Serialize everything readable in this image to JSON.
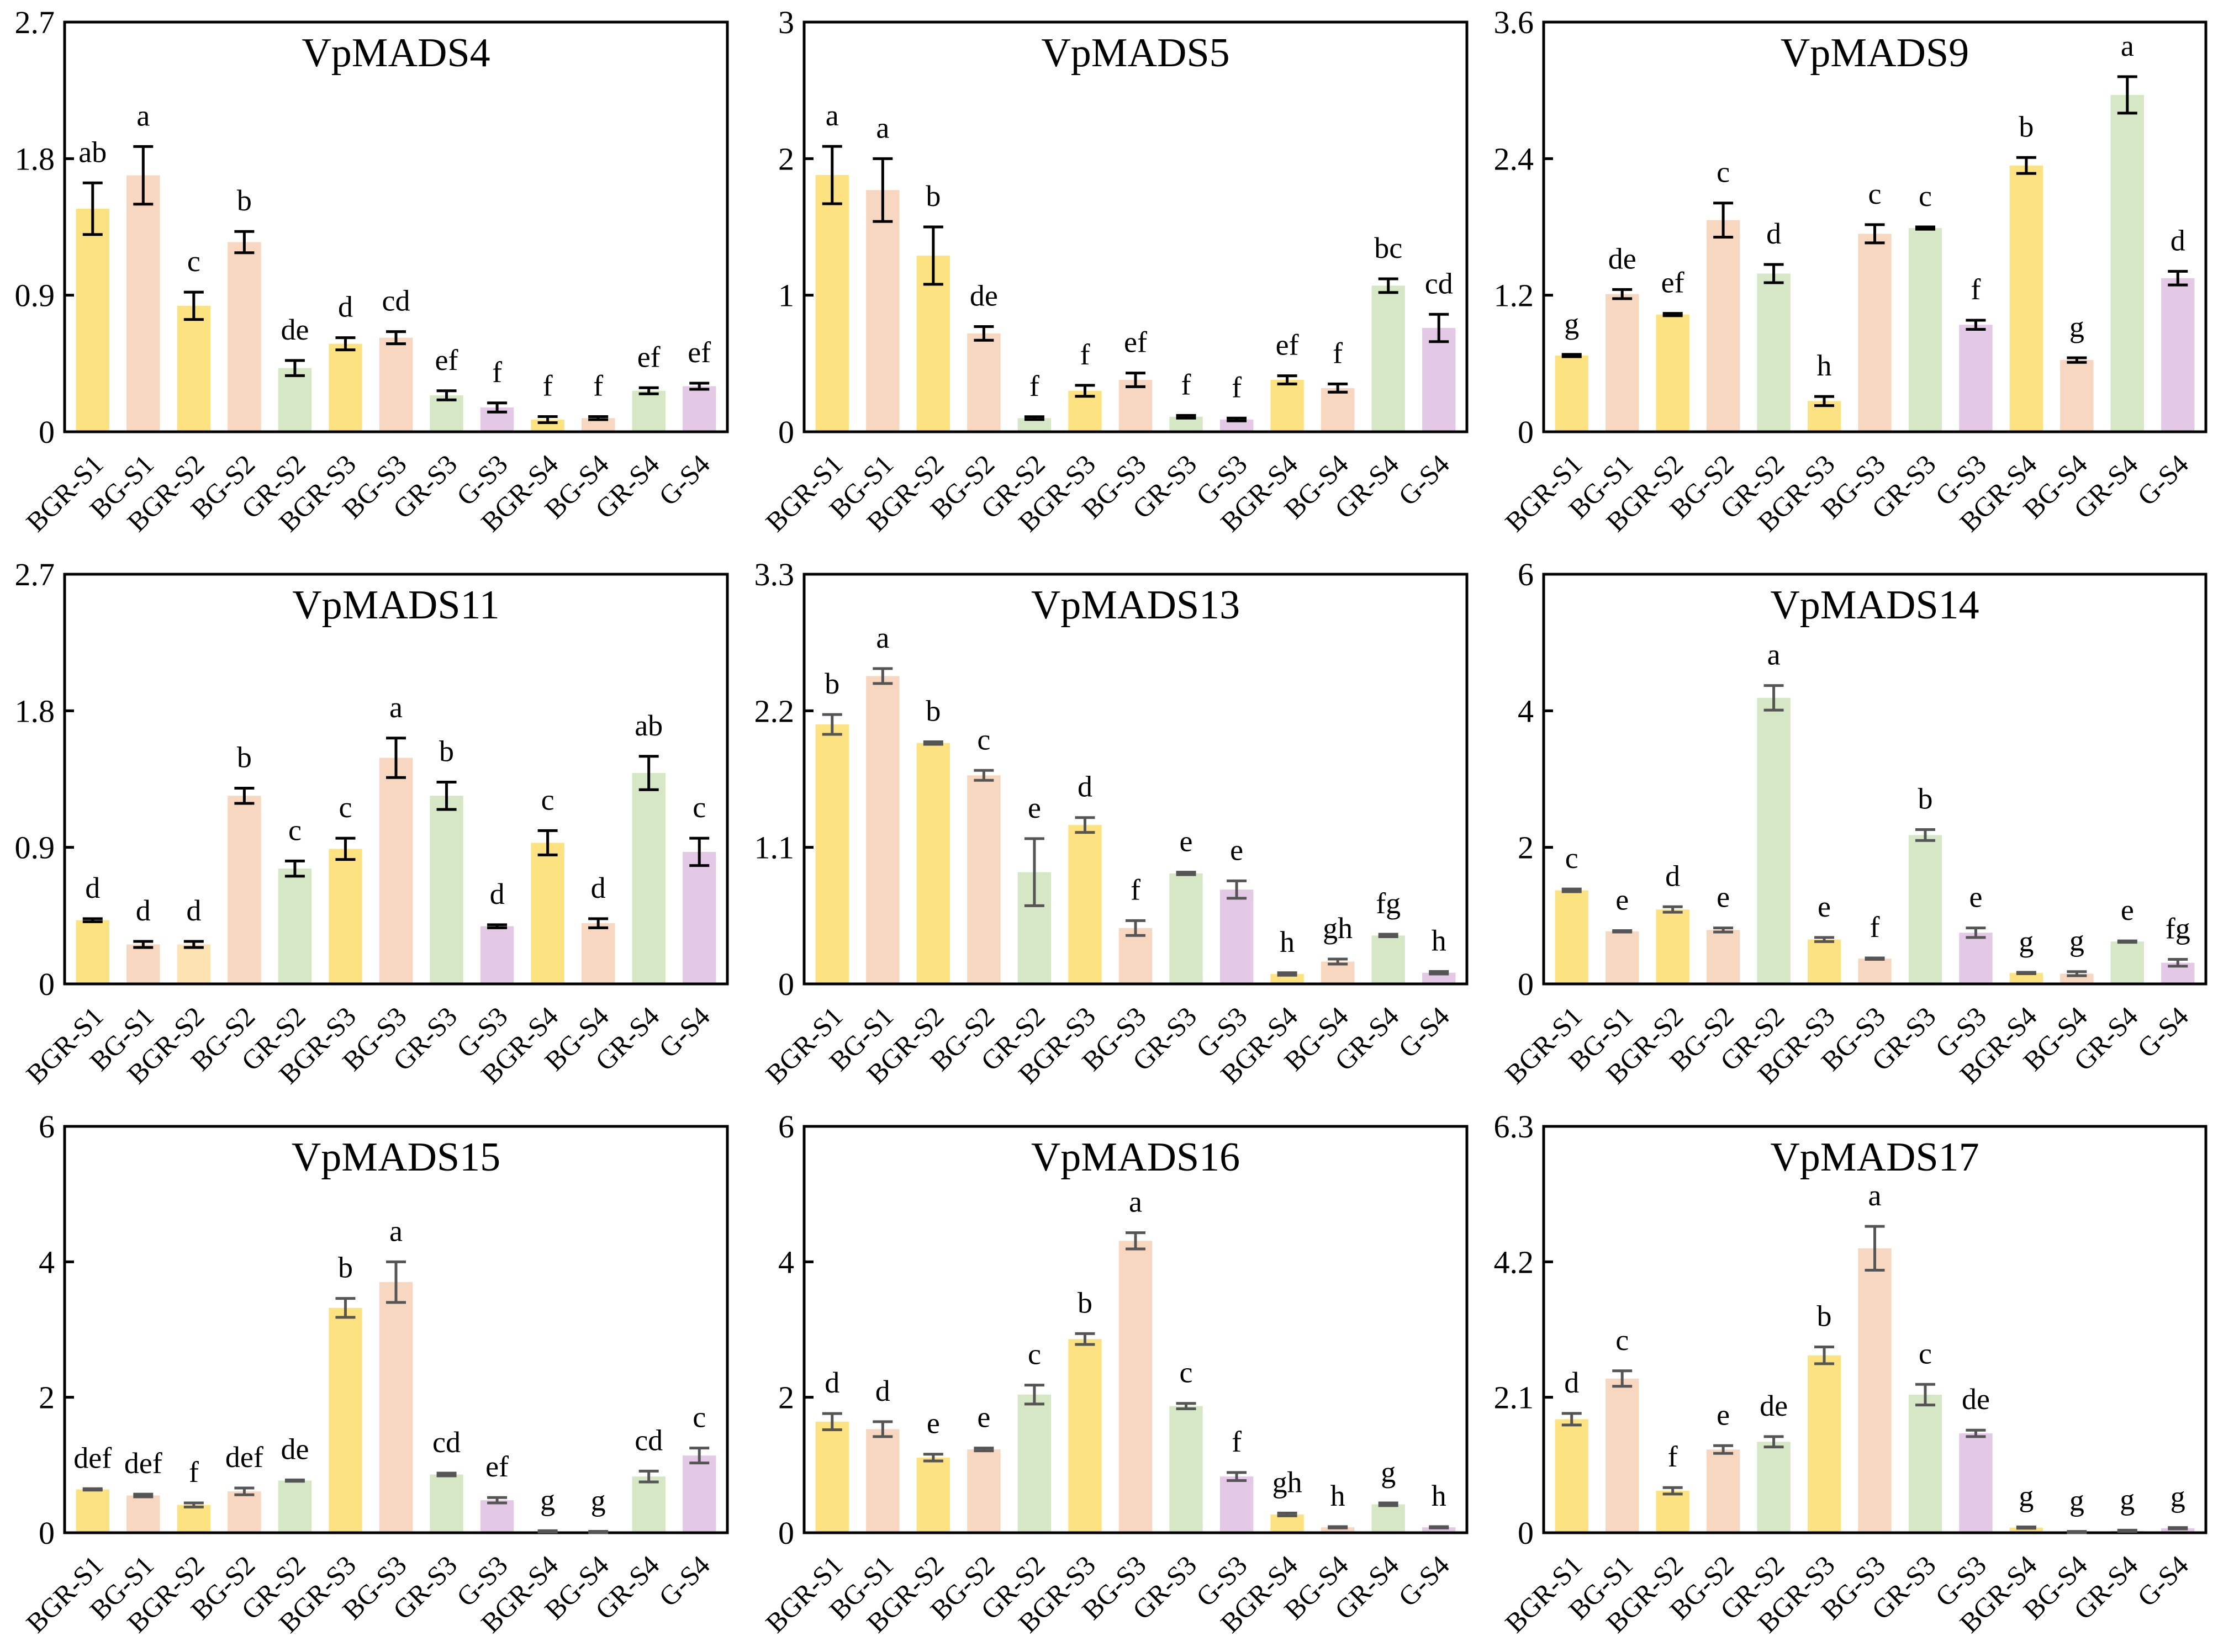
{
  "figure": {
    "colors": {
      "BGR": "#FDE281",
      "BG": "#F8D7C1",
      "GR": "#D5E7C5",
      "G": "#E3C9E5",
      "BGR_light": "#FDE3B2",
      "errbar_black": "#000000",
      "errbar_gray": "#555555"
    }
  },
  "chart_data": [
    {
      "type": "bar",
      "title": "VpMADS4",
      "categories": [
        "BGR-S1",
        "BG-S1",
        "BGR-S2",
        "BG-S2",
        "GR-S2",
        "BGR-S3",
        "BG-S3",
        "GR-S3",
        "G-S3",
        "BGR-S4",
        "BG-S4",
        "GR-S4",
        "G-S4"
      ],
      "bar_colors": [
        "BGR",
        "BG",
        "BGR",
        "BG",
        "GR",
        "BGR",
        "BG",
        "GR",
        "G",
        "BGR",
        "BG",
        "GR",
        "G"
      ],
      "values": [
        1.47,
        1.69,
        0.83,
        1.25,
        0.42,
        0.58,
        0.62,
        0.24,
        0.16,
        0.08,
        0.09,
        0.27,
        0.3
      ],
      "errors": [
        0.17,
        0.19,
        0.09,
        0.07,
        0.05,
        0.04,
        0.04,
        0.03,
        0.03,
        0.02,
        0.01,
        0.02,
        0.02
      ],
      "letters": [
        "ab",
        "a",
        "c",
        "b",
        "de",
        "d",
        "cd",
        "ef",
        "f",
        "f",
        "f",
        "ef",
        "ef"
      ],
      "yticks": [
        "0",
        "0.9",
        "1.8",
        "2.7"
      ],
      "ylim": [
        0,
        2.7
      ],
      "errbar_color": "errbar_black",
      "xlabel": "",
      "ylabel": "",
      "grid": false,
      "legend": "none"
    },
    {
      "type": "bar",
      "title": "VpMADS5",
      "categories": [
        "BGR-S1",
        "BG-S1",
        "BGR-S2",
        "BG-S2",
        "GR-S2",
        "BGR-S3",
        "BG-S3",
        "GR-S3",
        "G-S3",
        "BGR-S4",
        "BG-S4",
        "GR-S4",
        "G-S4"
      ],
      "bar_colors": [
        "BGR",
        "BG",
        "BGR",
        "BG",
        "GR",
        "BGR",
        "BG",
        "GR",
        "G",
        "BGR",
        "BG",
        "GR",
        "G"
      ],
      "values": [
        1.88,
        1.77,
        1.29,
        0.72,
        0.1,
        0.3,
        0.38,
        0.11,
        0.09,
        0.38,
        0.32,
        1.07,
        0.76
      ],
      "errors": [
        0.21,
        0.23,
        0.21,
        0.05,
        0.01,
        0.04,
        0.05,
        0.01,
        0.01,
        0.03,
        0.03,
        0.05,
        0.1
      ],
      "letters": [
        "a",
        "a",
        "b",
        "de",
        "f",
        "f",
        "ef",
        "f",
        "f",
        "ef",
        "f",
        "bc",
        "cd"
      ],
      "yticks": [
        "0",
        "1",
        "2",
        "3"
      ],
      "ylim": [
        0,
        3
      ],
      "errbar_color": "errbar_black",
      "xlabel": "",
      "ylabel": "",
      "grid": false,
      "legend": "none"
    },
    {
      "type": "bar",
      "title": "VpMADS9",
      "categories": [
        "BGR-S1",
        "BG-S1",
        "BGR-S2",
        "BG-S2",
        "GR-S2",
        "BGR-S3",
        "BG-S3",
        "GR-S3",
        "G-S3",
        "BGR-S4",
        "BG-S4",
        "GR-S4",
        "G-S4"
      ],
      "bar_colors": [
        "BGR",
        "BG",
        "BGR",
        "BG",
        "GR",
        "BGR",
        "BG",
        "GR",
        "G",
        "BGR",
        "BG",
        "GR",
        "G"
      ],
      "values": [
        0.67,
        1.21,
        1.03,
        1.86,
        1.39,
        0.27,
        1.74,
        1.79,
        0.94,
        2.34,
        0.63,
        2.96,
        1.35
      ],
      "errors": [
        0.01,
        0.04,
        0.01,
        0.15,
        0.08,
        0.04,
        0.08,
        0.01,
        0.04,
        0.07,
        0.02,
        0.16,
        0.06
      ],
      "letters": [
        "g",
        "de",
        "ef",
        "c",
        "d",
        "h",
        "c",
        "c",
        "f",
        "b",
        "g",
        "a",
        "d"
      ],
      "yticks": [
        "0",
        "1.2",
        "2.4",
        "3.6"
      ],
      "ylim": [
        0,
        3.6
      ],
      "errbar_color": "errbar_black",
      "xlabel": "",
      "ylabel": "",
      "grid": false,
      "legend": "none"
    },
    {
      "type": "bar",
      "title": "VpMADS11",
      "categories": [
        "BGR-S1",
        "BG-S1",
        "BGR-S2",
        "BG-S2",
        "GR-S2",
        "BGR-S3",
        "BG-S3",
        "GR-S3",
        "G-S3",
        "BGR-S4",
        "BG-S4",
        "GR-S4",
        "G-S4"
      ],
      "bar_colors": [
        "BGR",
        "BG",
        "BGR_light",
        "BG",
        "GR",
        "BGR",
        "BG",
        "GR",
        "G",
        "BGR",
        "BG",
        "GR",
        "G"
      ],
      "values": [
        0.42,
        0.26,
        0.26,
        1.24,
        0.76,
        0.89,
        1.49,
        1.24,
        0.38,
        0.93,
        0.4,
        1.39,
        0.87
      ],
      "errors": [
        0.01,
        0.02,
        0.02,
        0.05,
        0.05,
        0.07,
        0.13,
        0.09,
        0.01,
        0.08,
        0.03,
        0.11,
        0.09
      ],
      "letters": [
        "d",
        "d",
        "d",
        "b",
        "c",
        "c",
        "a",
        "b",
        "d",
        "c",
        "d",
        "ab",
        "c"
      ],
      "yticks": [
        "0",
        "0.9",
        "1.8",
        "2.7"
      ],
      "ylim": [
        0,
        2.7
      ],
      "errbar_color": "errbar_black",
      "xlabel": "",
      "ylabel": "",
      "grid": false,
      "legend": "none"
    },
    {
      "type": "bar",
      "title": "VpMADS13",
      "categories": [
        "BGR-S1",
        "BG-S1",
        "BGR-S2",
        "BG-S2",
        "GR-S2",
        "BGR-S3",
        "BG-S3",
        "GR-S3",
        "G-S3",
        "BGR-S4",
        "BG-S4",
        "GR-S4",
        "G-S4"
      ],
      "bar_colors": [
        "BGR",
        "BG",
        "BGR",
        "BG",
        "GR",
        "BGR",
        "BG",
        "GR",
        "G",
        "BGR",
        "BG",
        "GR",
        "G"
      ],
      "values": [
        2.09,
        2.48,
        1.94,
        1.68,
        0.9,
        1.28,
        0.45,
        0.89,
        0.76,
        0.08,
        0.18,
        0.39,
        0.09
      ],
      "errors": [
        0.08,
        0.06,
        0.01,
        0.04,
        0.27,
        0.06,
        0.06,
        0.01,
        0.07,
        0.01,
        0.02,
        0.01,
        0.01
      ],
      "letters": [
        "b",
        "a",
        "b",
        "c",
        "e",
        "d",
        "f",
        "e",
        "e",
        "h",
        "gh",
        "fg",
        "h"
      ],
      "yticks": [
        "0",
        "1.1",
        "2.2",
        "3.3"
      ],
      "ylim": [
        0,
        3.3
      ],
      "errbar_color": "errbar_gray",
      "xlabel": "",
      "ylabel": "",
      "grid": false,
      "legend": "none"
    },
    {
      "type": "bar",
      "title": "VpMADS14",
      "categories": [
        "BGR-S1",
        "BG-S1",
        "BGR-S2",
        "BG-S2",
        "GR-S2",
        "BGR-S3",
        "BG-S3",
        "GR-S3",
        "G-S3",
        "BGR-S4",
        "BG-S4",
        "GR-S4",
        "G-S4"
      ],
      "bar_colors": [
        "BGR",
        "BG",
        "BGR",
        "BG",
        "GR",
        "BGR",
        "BG",
        "GR",
        "G",
        "BGR",
        "BG",
        "GR",
        "G"
      ],
      "values": [
        1.37,
        0.77,
        1.09,
        0.79,
        4.19,
        0.65,
        0.37,
        2.18,
        0.75,
        0.16,
        0.15,
        0.62,
        0.31
      ],
      "errors": [
        0.02,
        0.01,
        0.04,
        0.03,
        0.18,
        0.03,
        0.01,
        0.08,
        0.07,
        0.01,
        0.03,
        0.01,
        0.05
      ],
      "letters": [
        "c",
        "e",
        "d",
        "e",
        "a",
        "e",
        "f",
        "b",
        "e",
        "g",
        "g",
        "e",
        "fg"
      ],
      "yticks": [
        "0",
        "2",
        "4",
        "6"
      ],
      "ylim": [
        0,
        6
      ],
      "errbar_color": "errbar_gray",
      "xlabel": "",
      "ylabel": "",
      "grid": false,
      "legend": "none"
    },
    {
      "type": "bar",
      "title": "VpMADS15",
      "categories": [
        "BGR-S1",
        "BG-S1",
        "BGR-S2",
        "BG-S2",
        "GR-S2",
        "BGR-S3",
        "BG-S3",
        "GR-S3",
        "G-S3",
        "BGR-S4",
        "BG-S4",
        "GR-S4",
        "G-S4"
      ],
      "bar_colors": [
        "BGR",
        "BG",
        "BGR",
        "BG",
        "GR",
        "BGR",
        "BG",
        "GR",
        "G",
        "BGR",
        "BG",
        "GR",
        "G"
      ],
      "values": [
        0.64,
        0.55,
        0.41,
        0.61,
        0.77,
        3.32,
        3.7,
        0.86,
        0.48,
        0.02,
        0.01,
        0.83,
        1.14
      ],
      "errors": [
        0.01,
        0.02,
        0.03,
        0.05,
        0.01,
        0.14,
        0.3,
        0.02,
        0.04,
        0.01,
        0.01,
        0.08,
        0.11
      ],
      "letters": [
        "def",
        "def",
        "f",
        "def",
        "de",
        "b",
        "a",
        "cd",
        "ef",
        "g",
        "g",
        "cd",
        "c"
      ],
      "yticks": [
        "0",
        "2",
        "4",
        "6"
      ],
      "ylim": [
        0,
        6
      ],
      "errbar_color": "errbar_gray",
      "xlabel": "",
      "ylabel": "",
      "grid": false,
      "legend": "none"
    },
    {
      "type": "bar",
      "title": "VpMADS16",
      "categories": [
        "BGR-S1",
        "BG-S1",
        "BGR-S2",
        "BG-S2",
        "GR-S2",
        "BGR-S3",
        "BG-S3",
        "GR-S3",
        "G-S3",
        "BGR-S4",
        "BG-S4",
        "GR-S4",
        "G-S4"
      ],
      "bar_colors": [
        "BGR",
        "BG",
        "BGR",
        "BG",
        "GR",
        "BGR",
        "BG",
        "GR",
        "G",
        "BGR",
        "BG",
        "GR",
        "G"
      ],
      "values": [
        1.64,
        1.53,
        1.11,
        1.23,
        2.04,
        2.86,
        4.31,
        1.87,
        0.83,
        0.27,
        0.08,
        0.42,
        0.08
      ],
      "errors": [
        0.12,
        0.11,
        0.05,
        0.02,
        0.14,
        0.08,
        0.12,
        0.04,
        0.06,
        0.02,
        0.01,
        0.02,
        0.01
      ],
      "letters": [
        "d",
        "d",
        "e",
        "e",
        "c",
        "b",
        "a",
        "c",
        "f",
        "gh",
        "h",
        "g",
        "h"
      ],
      "yticks": [
        "0",
        "2",
        "4",
        "6"
      ],
      "ylim": [
        0,
        6
      ],
      "errbar_color": "errbar_gray",
      "xlabel": "",
      "ylabel": "",
      "grid": false,
      "legend": "none"
    },
    {
      "type": "bar",
      "title": "VpMADS17",
      "categories": [
        "BGR-S1",
        "BG-S1",
        "BGR-S2",
        "BG-S2",
        "GR-S2",
        "BGR-S3",
        "BG-S3",
        "GR-S3",
        "G-S3",
        "BGR-S4",
        "BG-S4",
        "GR-S4",
        "G-S4"
      ],
      "bar_colors": [
        "BGR",
        "BG",
        "BGR",
        "BG",
        "GR",
        "BGR",
        "BG",
        "GR",
        "G",
        "BGR",
        "BG",
        "GR",
        "G"
      ],
      "values": [
        1.76,
        2.39,
        0.65,
        1.29,
        1.41,
        2.75,
        4.41,
        2.14,
        1.54,
        0.08,
        0.01,
        0.03,
        0.07
      ],
      "errors": [
        0.09,
        0.12,
        0.05,
        0.06,
        0.08,
        0.13,
        0.34,
        0.16,
        0.05,
        0.01,
        0.01,
        0.01,
        0.01
      ],
      "letters": [
        "d",
        "c",
        "f",
        "e",
        "de",
        "b",
        "a",
        "c",
        "de",
        "g",
        "g",
        "g",
        "g"
      ],
      "yticks": [
        "0",
        "2.1",
        "4.2",
        "6.3"
      ],
      "ylim": [
        0,
        6.3
      ],
      "errbar_color": "errbar_gray",
      "xlabel": "",
      "ylabel": "",
      "grid": false,
      "legend": "none"
    }
  ]
}
